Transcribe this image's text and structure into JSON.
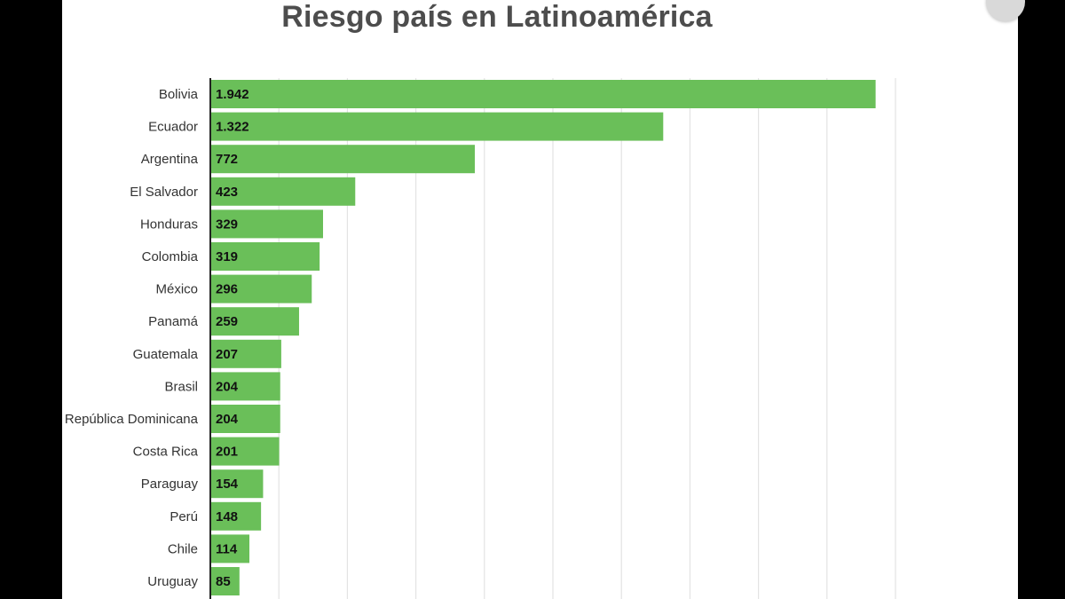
{
  "chart_data": {
    "type": "bar",
    "orientation": "horizontal",
    "title": "Riesgo país en Latinoamérica",
    "categories": [
      "Bolivia",
      "Ecuador",
      "Argentina",
      "El Salvador",
      "Honduras",
      "Colombia",
      "México",
      "Panamá",
      "Guatemala",
      "Brasil",
      "República Dominicana",
      "Costa Rica",
      "Paraguay",
      "Perú",
      "Chile",
      "Uruguay"
    ],
    "values": [
      1942,
      1322,
      772,
      423,
      329,
      319,
      296,
      259,
      207,
      204,
      204,
      201,
      154,
      148,
      114,
      85
    ],
    "value_labels": [
      "1.942",
      "1.322",
      "772",
      "423",
      "329",
      "319",
      "296",
      "259",
      "207",
      "204",
      "204",
      "201",
      "154",
      "148",
      "114",
      "85"
    ],
    "xlim": [
      0,
      2000
    ],
    "grid": true,
    "legend": "none",
    "bar_color": "#6abf59"
  }
}
